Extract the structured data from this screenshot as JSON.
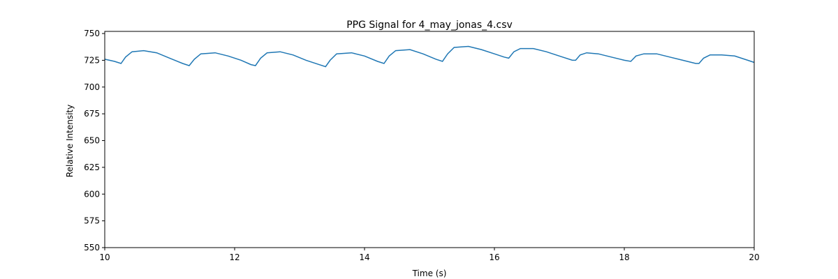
{
  "chart_data": {
    "type": "line",
    "title": "PPG Signal for 4_may_jonas_4.csv",
    "x_label": "Time (s)",
    "y_label": "Relative Intensity",
    "series": [
      {
        "name": "PPG",
        "color": "#1f77b4",
        "x": [
          10.0,
          10.15,
          10.25,
          10.32,
          10.42,
          10.6,
          10.8,
          11.0,
          11.2,
          11.3,
          11.38,
          11.48,
          11.7,
          11.9,
          12.1,
          12.25,
          12.32,
          12.4,
          12.5,
          12.7,
          12.9,
          13.1,
          13.3,
          13.4,
          13.47,
          13.57,
          13.8,
          14.0,
          14.2,
          14.3,
          14.38,
          14.48,
          14.7,
          14.9,
          15.1,
          15.2,
          15.28,
          15.38,
          15.6,
          15.8,
          16.0,
          16.15,
          16.22,
          16.3,
          16.4,
          16.6,
          16.8,
          17.0,
          17.2,
          17.25,
          17.32,
          17.42,
          17.6,
          17.8,
          18.0,
          18.1,
          18.18,
          18.3,
          18.5,
          18.7,
          18.9,
          19.1,
          19.15,
          19.22,
          19.32,
          19.5,
          19.7,
          19.9,
          20.0
        ],
        "values": [
          726,
          724,
          722,
          728,
          733,
          734,
          732,
          727,
          722,
          720,
          726,
          731,
          732,
          729,
          725,
          721,
          720,
          727,
          732,
          733,
          730,
          725,
          721,
          719,
          725,
          731,
          732,
          729,
          724,
          722,
          729,
          734,
          735,
          731,
          726,
          724,
          731,
          737,
          738,
          735,
          731,
          728,
          727,
          733,
          736,
          736,
          733,
          729,
          725,
          725,
          730,
          732,
          731,
          728,
          725,
          724,
          729,
          731,
          731,
          728,
          725,
          722,
          722,
          727,
          730,
          730,
          729,
          725,
          723
        ]
      }
    ],
    "xlim": [
      10,
      20
    ],
    "xticks": [
      10,
      12,
      14,
      16,
      18,
      20
    ],
    "ylim": [
      550,
      752
    ],
    "yticks": [
      550,
      575,
      600,
      625,
      650,
      675,
      700,
      725,
      750
    ]
  }
}
